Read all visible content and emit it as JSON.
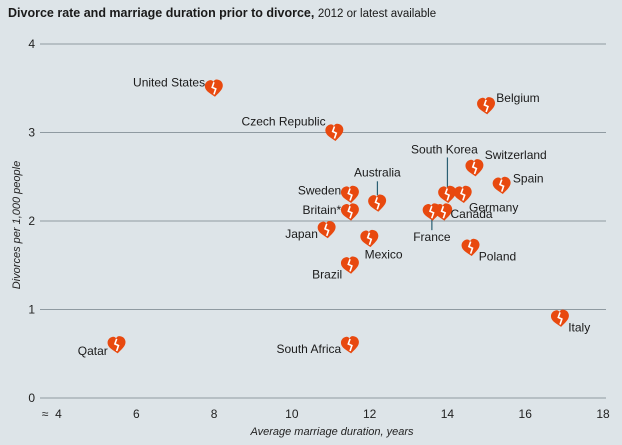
{
  "title": "Divorce rate and marriage duration prior to divorce,",
  "subtitle": "2012 or latest available",
  "colors": {
    "marker": "#e8490f",
    "background": "#dde4e8",
    "grid": "#8f9aa1",
    "leader": "#2a5f73"
  },
  "chart_data": {
    "type": "scatter",
    "xlabel": "Average marriage duration, years",
    "ylabel": "Divorces per 1,000 people",
    "xlim": [
      4,
      18
    ],
    "ylim": [
      0,
      4
    ],
    "x_ticks": [
      "4",
      "6",
      "8",
      "10",
      "12",
      "14",
      "16",
      "18"
    ],
    "y_ticks": [
      "0",
      "1",
      "2",
      "3",
      "4"
    ],
    "axis_break": "≈",
    "footnote_marker": "*",
    "points": [
      {
        "name": "United States",
        "x": 8.0,
        "y": 3.5
      },
      {
        "name": "Belgium",
        "x": 15.0,
        "y": 3.3
      },
      {
        "name": "Czech Republic",
        "x": 11.1,
        "y": 3.0
      },
      {
        "name": "Switzerland",
        "x": 14.7,
        "y": 2.6
      },
      {
        "name": "Spain",
        "x": 15.4,
        "y": 2.4
      },
      {
        "name": "South Korea",
        "x": 14.0,
        "y": 2.3
      },
      {
        "name": "Germany",
        "x": 14.4,
        "y": 2.3
      },
      {
        "name": "Sweden",
        "x": 11.5,
        "y": 2.3
      },
      {
        "name": "Australia",
        "x": 12.2,
        "y": 2.2
      },
      {
        "name": "Britain*",
        "x": 11.5,
        "y": 2.1
      },
      {
        "name": "France",
        "x": 13.6,
        "y": 2.1
      },
      {
        "name": "Canada",
        "x": 13.9,
        "y": 2.1
      },
      {
        "name": "Japan",
        "x": 10.9,
        "y": 1.9
      },
      {
        "name": "Mexico",
        "x": 12.0,
        "y": 1.8
      },
      {
        "name": "Poland",
        "x": 14.6,
        "y": 1.7
      },
      {
        "name": "Brazil",
        "x": 11.5,
        "y": 1.5
      },
      {
        "name": "Italy",
        "x": 16.9,
        "y": 0.9
      },
      {
        "name": "Qatar",
        "x": 5.5,
        "y": 0.6
      },
      {
        "name": "South Africa",
        "x": 11.5,
        "y": 0.6
      }
    ]
  }
}
